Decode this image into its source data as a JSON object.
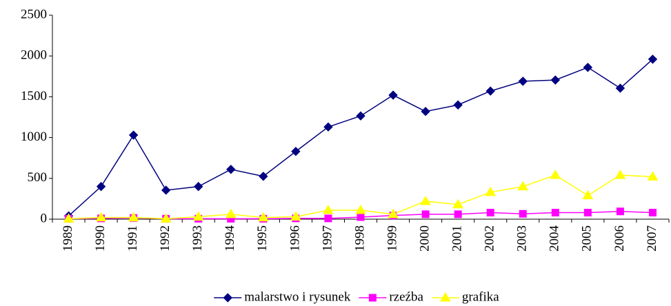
{
  "chart_data": {
    "type": "line",
    "categories": [
      "1989",
      "1990",
      "1991",
      "1992",
      "1993",
      "1994",
      "1995",
      "1996",
      "1997",
      "1998",
      "1999",
      "2000",
      "2001",
      "2002",
      "2003",
      "2004",
      "2005",
      "2006",
      "2007"
    ],
    "series": [
      {
        "name": "malarstwo i rysunek",
        "color": "#000080",
        "marker": "diamond",
        "values": [
          40,
          400,
          1030,
          355,
          400,
          610,
          525,
          830,
          1130,
          1265,
          1520,
          1320,
          1400,
          1570,
          1690,
          1705,
          1860,
          1605,
          1960
        ]
      },
      {
        "name": "rzeźba",
        "color": "#ff00ff",
        "marker": "square",
        "values": [
          5,
          10,
          15,
          5,
          5,
          5,
          5,
          10,
          10,
          25,
          45,
          60,
          60,
          80,
          65,
          80,
          80,
          95,
          80
        ]
      },
      {
        "name": "grafika",
        "color": "#ffff00",
        "marker": "triangle",
        "values": [
          5,
          20,
          20,
          5,
          30,
          60,
          20,
          30,
          110,
          110,
          60,
          220,
          180,
          330,
          400,
          540,
          290,
          540,
          520
        ]
      }
    ],
    "ylim": [
      0,
      2500
    ],
    "yticks": [
      0,
      500,
      1000,
      1500,
      2000,
      2500
    ],
    "grid": false,
    "legend": "bottom"
  }
}
